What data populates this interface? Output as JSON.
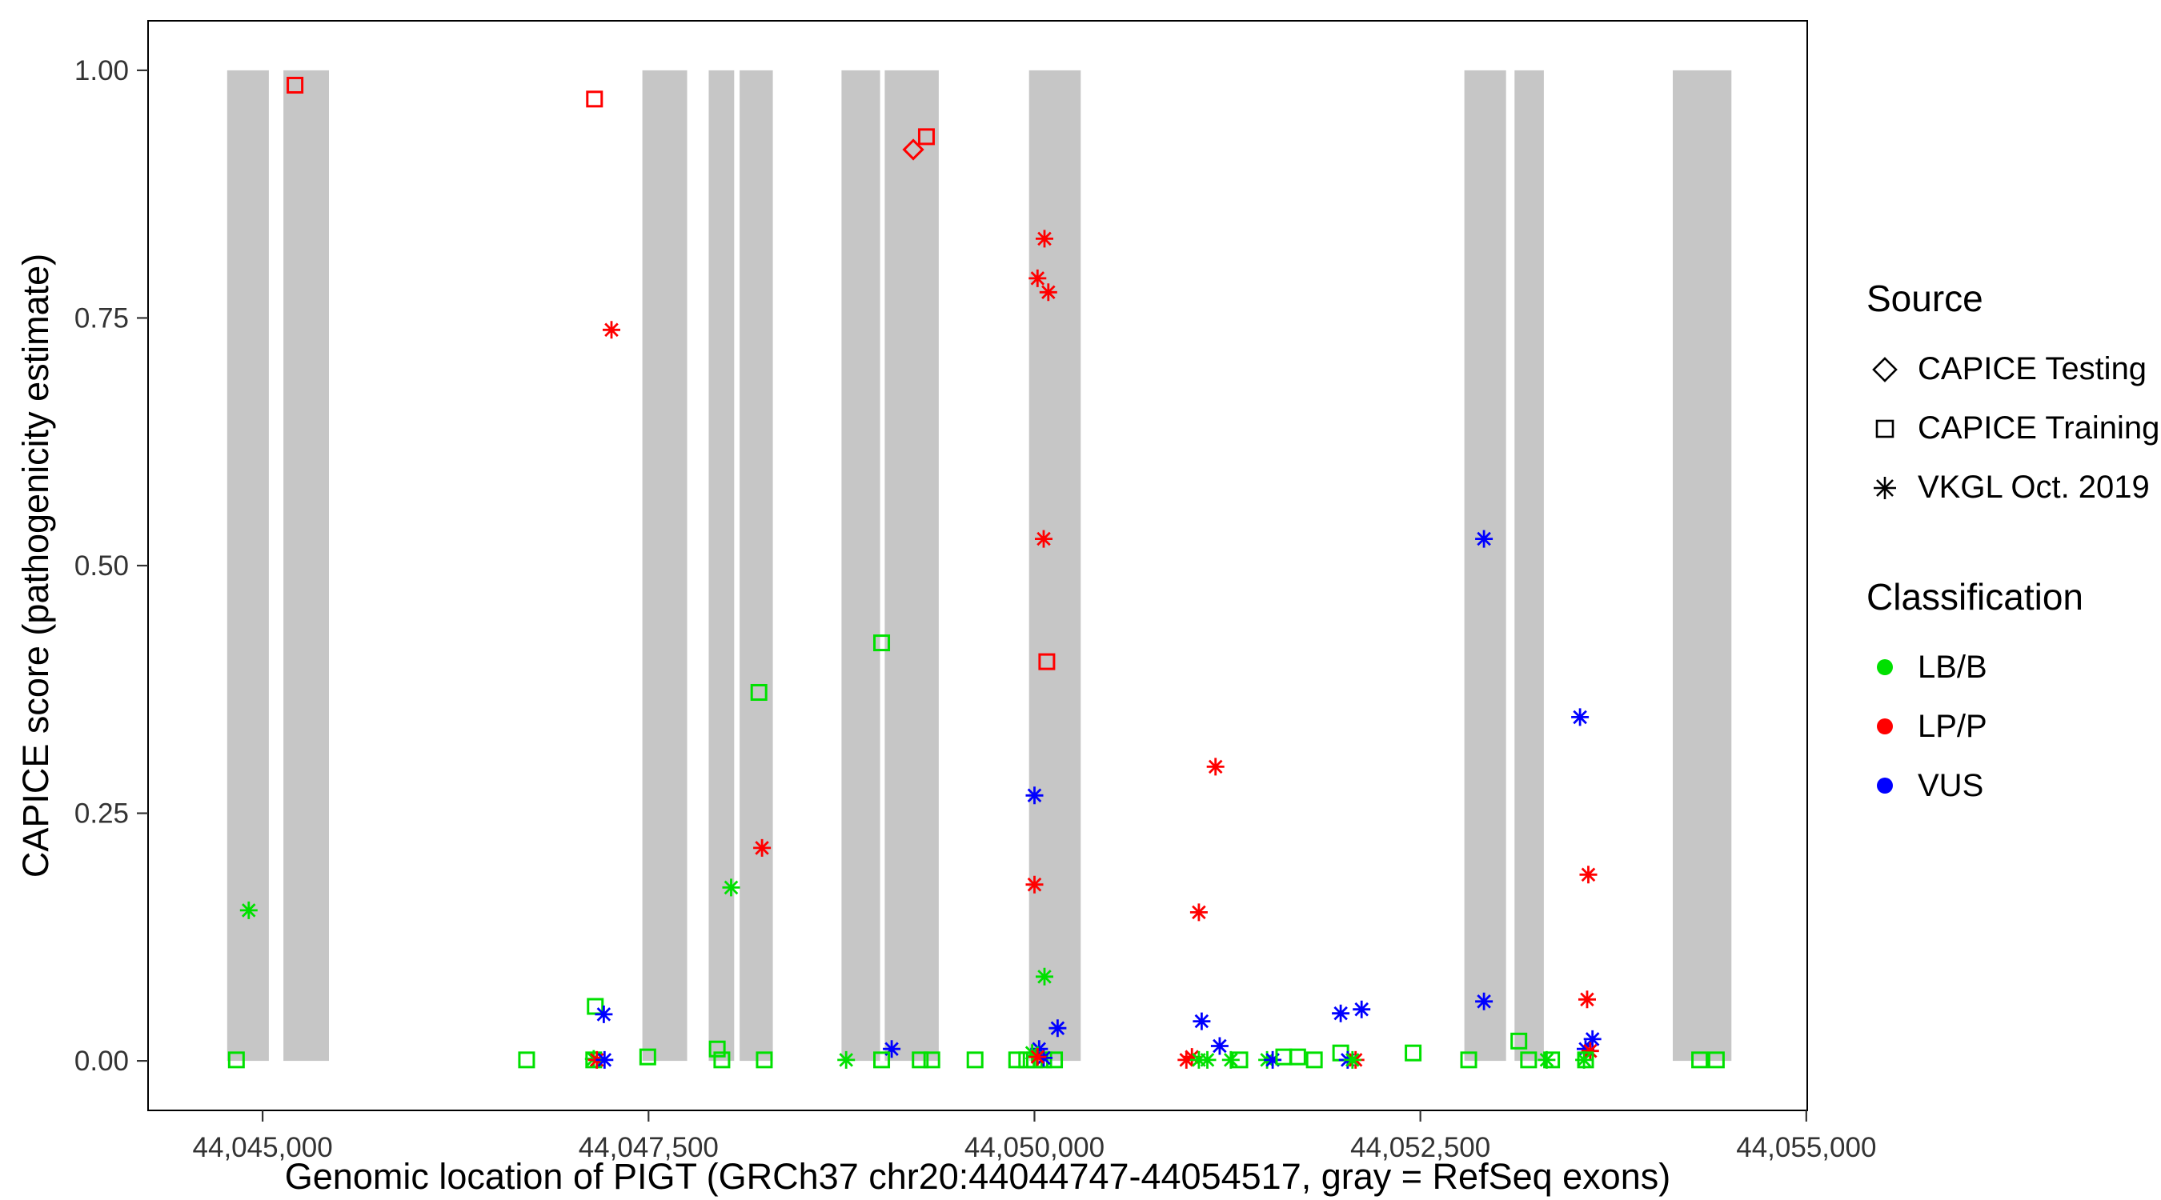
{
  "legend": {
    "source_title": "Source",
    "source_items": [
      {
        "label": "CAPICE Testing",
        "shape": "diamond"
      },
      {
        "label": "CAPICE Training",
        "shape": "square"
      },
      {
        "label": "VKGL Oct. 2019",
        "shape": "asterisk"
      }
    ],
    "class_title": "Classification",
    "class_items": [
      {
        "label": "LB/B",
        "color": "#00E000"
      },
      {
        "label": "LP/P",
        "color": "#FF0000"
      },
      {
        "label": "VUS",
        "color": "#0000FF"
      }
    ]
  },
  "chart_data": {
    "type": "scatter",
    "title": "",
    "xlabel": "Genomic location of PIGT (GRCh37 chr20:44044747-44054517, gray = RefSeq exons)",
    "ylabel": "CAPICE score (pathogenicity estimate)",
    "xlim": [
      44044258,
      44055006
    ],
    "ylim": [
      -0.05,
      1.05
    ],
    "x_ticks": [
      44045000,
      44047500,
      44050000,
      44052500,
      44055000
    ],
    "x_tick_labels": [
      "44,045,000",
      "44,047,500",
      "44,050,000",
      "44,052,500",
      "44,055,000"
    ],
    "y_ticks": [
      0.0,
      0.25,
      0.5,
      0.75,
      1.0
    ],
    "y_tick_labels": [
      "0.00",
      "0.25",
      "0.50",
      "0.75",
      "1.00"
    ],
    "grid": false,
    "legend_position": "right",
    "exon_color": "#C6C6C6",
    "exons": [
      [
        44044770,
        44045040
      ],
      [
        44045135,
        44045430
      ],
      [
        44047460,
        44047750
      ],
      [
        44047890,
        44048055
      ],
      [
        44048090,
        44048305
      ],
      [
        44048750,
        44049000
      ],
      [
        44049030,
        44049380
      ],
      [
        44049965,
        44050300
      ],
      [
        44052785,
        44053055
      ],
      [
        44053110,
        44053300
      ],
      [
        44054135,
        44054515
      ]
    ],
    "class_colors": {
      "LB/B": "#00E000",
      "LP/P": "#FF0000",
      "VUS": "#0000FF"
    },
    "source_shapes": {
      "CAPICE Testing": "diamond",
      "CAPICE Training": "square",
      "VKGL Oct. 2019": "asterisk"
    },
    "points": [
      {
        "x": 44045210,
        "y": 0.985,
        "source": "CAPICE Training",
        "class": "LP/P"
      },
      {
        "x": 44047150,
        "y": 0.971,
        "source": "CAPICE Training",
        "class": "LP/P"
      },
      {
        "x": 44049215,
        "y": 0.92,
        "source": "CAPICE Testing",
        "class": "LP/P"
      },
      {
        "x": 44049300,
        "y": 0.933,
        "source": "CAPICE Training",
        "class": "LP/P"
      },
      {
        "x": 44047260,
        "y": 0.738,
        "source": "VKGL Oct. 2019",
        "class": "LP/P"
      },
      {
        "x": 44050065,
        "y": 0.83,
        "source": "VKGL Oct. 2019",
        "class": "LP/P"
      },
      {
        "x": 44050020,
        "y": 0.79,
        "source": "VKGL Oct. 2019",
        "class": "LP/P"
      },
      {
        "x": 44050090,
        "y": 0.776,
        "source": "VKGL Oct. 2019",
        "class": "LP/P"
      },
      {
        "x": 44050060,
        "y": 0.527,
        "source": "VKGL Oct. 2019",
        "class": "LP/P"
      },
      {
        "x": 44050080,
        "y": 0.403,
        "source": "CAPICE Training",
        "class": "LP/P"
      },
      {
        "x": 44052912,
        "y": 0.527,
        "source": "VKGL Oct. 2019",
        "class": "VUS"
      },
      {
        "x": 44049010,
        "y": 0.422,
        "source": "CAPICE Training",
        "class": "LB/B"
      },
      {
        "x": 44048215,
        "y": 0.372,
        "source": "CAPICE Training",
        "class": "LB/B"
      },
      {
        "x": 44053534,
        "y": 0.347,
        "source": "VKGL Oct. 2019",
        "class": "VUS"
      },
      {
        "x": 44051173,
        "y": 0.297,
        "source": "VKGL Oct. 2019",
        "class": "LP/P"
      },
      {
        "x": 44050000,
        "y": 0.268,
        "source": "VKGL Oct. 2019",
        "class": "VUS"
      },
      {
        "x": 44048235,
        "y": 0.215,
        "source": "VKGL Oct. 2019",
        "class": "LP/P"
      },
      {
        "x": 44053588,
        "y": 0.188,
        "source": "VKGL Oct. 2019",
        "class": "LP/P"
      },
      {
        "x": 44050000,
        "y": 0.178,
        "source": "VKGL Oct. 2019",
        "class": "LP/P"
      },
      {
        "x": 44048035,
        "y": 0.175,
        "source": "VKGL Oct. 2019",
        "class": "LB/B"
      },
      {
        "x": 44044910,
        "y": 0.152,
        "source": "VKGL Oct. 2019",
        "class": "LB/B"
      },
      {
        "x": 44051065,
        "y": 0.15,
        "source": "VKGL Oct. 2019",
        "class": "LP/P"
      },
      {
        "x": 44050065,
        "y": 0.085,
        "source": "VKGL Oct. 2019",
        "class": "LB/B"
      },
      {
        "x": 44053580,
        "y": 0.062,
        "source": "VKGL Oct. 2019",
        "class": "LP/P"
      },
      {
        "x": 44052912,
        "y": 0.06,
        "source": "VKGL Oct. 2019",
        "class": "VUS"
      },
      {
        "x": 44047155,
        "y": 0.055,
        "source": "CAPICE Training",
        "class": "LB/B"
      },
      {
        "x": 44047210,
        "y": 0.047,
        "source": "VKGL Oct. 2019",
        "class": "VUS"
      },
      {
        "x": 44051083,
        "y": 0.04,
        "source": "VKGL Oct. 2019",
        "class": "VUS"
      },
      {
        "x": 44050150,
        "y": 0.033,
        "source": "VKGL Oct. 2019",
        "class": "VUS"
      },
      {
        "x": 44051984,
        "y": 0.048,
        "source": "VKGL Oct. 2019",
        "class": "VUS"
      },
      {
        "x": 44052119,
        "y": 0.052,
        "source": "VKGL Oct. 2019",
        "class": "VUS"
      },
      {
        "x": 44053615,
        "y": 0.022,
        "source": "VKGL Oct. 2019",
        "class": "VUS"
      },
      {
        "x": 44053570,
        "y": 0.012,
        "source": "VKGL Oct. 2019",
        "class": "VUS"
      },
      {
        "x": 44051200,
        "y": 0.015,
        "source": "VKGL Oct. 2019",
        "class": "VUS"
      },
      {
        "x": 44049075,
        "y": 0.012,
        "source": "VKGL Oct. 2019",
        "class": "VUS"
      },
      {
        "x": 44050030,
        "y": 0.012,
        "source": "VKGL Oct. 2019",
        "class": "VUS"
      },
      {
        "x": 44053138,
        "y": 0.02,
        "source": "CAPICE Training",
        "class": "LB/B"
      },
      {
        "x": 44047945,
        "y": 0.012,
        "source": "CAPICE Training",
        "class": "LB/B"
      },
      {
        "x": 44052453,
        "y": 0.008,
        "source": "CAPICE Training",
        "class": "LB/B"
      },
      {
        "x": 44051984,
        "y": 0.008,
        "source": "CAPICE Training",
        "class": "LB/B"
      },
      {
        "x": 44049985,
        "y": 0.008,
        "source": "VKGL Oct. 2019",
        "class": "LB/B"
      },
      {
        "x": 44053600,
        "y": 0.01,
        "source": "VKGL Oct. 2019",
        "class": "LP/P"
      },
      {
        "x": 44044830,
        "y": 0.001,
        "source": "CAPICE Training",
        "class": "LB/B"
      },
      {
        "x": 44046710,
        "y": 0.001,
        "source": "CAPICE Training",
        "class": "LB/B"
      },
      {
        "x": 44047145,
        "y": 0.001,
        "source": "CAPICE Training",
        "class": "LB/B"
      },
      {
        "x": 44047145,
        "y": 0.002,
        "source": "VKGL Oct. 2019",
        "class": "LB/B"
      },
      {
        "x": 44047165,
        "y": 0.001,
        "source": "VKGL Oct. 2019",
        "class": "LP/P"
      },
      {
        "x": 44047215,
        "y": 0.001,
        "source": "VKGL Oct. 2019",
        "class": "VUS"
      },
      {
        "x": 44047495,
        "y": 0.004,
        "source": "CAPICE Training",
        "class": "LB/B"
      },
      {
        "x": 44047975,
        "y": 0.001,
        "source": "CAPICE Training",
        "class": "LB/B"
      },
      {
        "x": 44048250,
        "y": 0.001,
        "source": "CAPICE Training",
        "class": "LB/B"
      },
      {
        "x": 44048780,
        "y": 0.001,
        "source": "VKGL Oct. 2019",
        "class": "LB/B"
      },
      {
        "x": 44049010,
        "y": 0.001,
        "source": "CAPICE Training",
        "class": "LB/B"
      },
      {
        "x": 44049260,
        "y": 0.001,
        "source": "CAPICE Training",
        "class": "LB/B"
      },
      {
        "x": 44049335,
        "y": 0.001,
        "source": "CAPICE Training",
        "class": "LB/B"
      },
      {
        "x": 44049615,
        "y": 0.001,
        "source": "CAPICE Training",
        "class": "LB/B"
      },
      {
        "x": 44049885,
        "y": 0.001,
        "source": "CAPICE Training",
        "class": "LB/B"
      },
      {
        "x": 44049950,
        "y": 0.001,
        "source": "CAPICE Training",
        "class": "LB/B"
      },
      {
        "x": 44050000,
        "y": 0.001,
        "source": "CAPICE Training",
        "class": "LB/B"
      },
      {
        "x": 44050060,
        "y": 0.001,
        "source": "CAPICE Training",
        "class": "LB/B"
      },
      {
        "x": 44050130,
        "y": 0.001,
        "source": "CAPICE Training",
        "class": "LB/B"
      },
      {
        "x": 44050060,
        "y": 0.003,
        "source": "VKGL Oct. 2019",
        "class": "VUS"
      },
      {
        "x": 44050020,
        "y": 0.004,
        "source": "VKGL Oct. 2019",
        "class": "LP/P"
      },
      {
        "x": 44050984,
        "y": 0.001,
        "source": "VKGL Oct. 2019",
        "class": "LP/P"
      },
      {
        "x": 44051020,
        "y": 0.004,
        "source": "VKGL Oct. 2019",
        "class": "LP/P"
      },
      {
        "x": 44051065,
        "y": 0.001,
        "source": "VKGL Oct. 2019",
        "class": "LB/B"
      },
      {
        "x": 44051120,
        "y": 0.001,
        "source": "VKGL Oct. 2019",
        "class": "LB/B"
      },
      {
        "x": 44051272,
        "y": 0.001,
        "source": "VKGL Oct. 2019",
        "class": "LB/B"
      },
      {
        "x": 44051330,
        "y": 0.001,
        "source": "CAPICE Training",
        "class": "LB/B"
      },
      {
        "x": 44051507,
        "y": 0.001,
        "source": "VKGL Oct. 2019",
        "class": "LB/B"
      },
      {
        "x": 44051543,
        "y": 0.001,
        "source": "VKGL Oct. 2019",
        "class": "VUS"
      },
      {
        "x": 44051615,
        "y": 0.004,
        "source": "CAPICE Training",
        "class": "LB/B"
      },
      {
        "x": 44051705,
        "y": 0.004,
        "source": "CAPICE Training",
        "class": "LB/B"
      },
      {
        "x": 44051813,
        "y": 0.001,
        "source": "CAPICE Training",
        "class": "LB/B"
      },
      {
        "x": 44052029,
        "y": 0.001,
        "source": "VKGL Oct. 2019",
        "class": "VUS"
      },
      {
        "x": 44052080,
        "y": 0.001,
        "source": "VKGL Oct. 2019",
        "class": "LP/P"
      },
      {
        "x": 44052060,
        "y": 0.001,
        "source": "VKGL Oct. 2019",
        "class": "LB/B"
      },
      {
        "x": 44052813,
        "y": 0.001,
        "source": "CAPICE Training",
        "class": "LB/B"
      },
      {
        "x": 44053201,
        "y": 0.001,
        "source": "CAPICE Training",
        "class": "LB/B"
      },
      {
        "x": 44053318,
        "y": 0.001,
        "source": "VKGL Oct. 2019",
        "class": "LB/B"
      },
      {
        "x": 44053350,
        "y": 0.001,
        "source": "CAPICE Training",
        "class": "LB/B"
      },
      {
        "x": 44053560,
        "y": 0.001,
        "source": "VKGL Oct. 2019",
        "class": "LB/B"
      },
      {
        "x": 44053570,
        "y": 0.001,
        "source": "CAPICE Training",
        "class": "LB/B"
      },
      {
        "x": 44054309,
        "y": 0.001,
        "source": "CAPICE Training",
        "class": "LB/B"
      },
      {
        "x": 44054417,
        "y": 0.001,
        "source": "CAPICE Training",
        "class": "LB/B"
      }
    ]
  }
}
